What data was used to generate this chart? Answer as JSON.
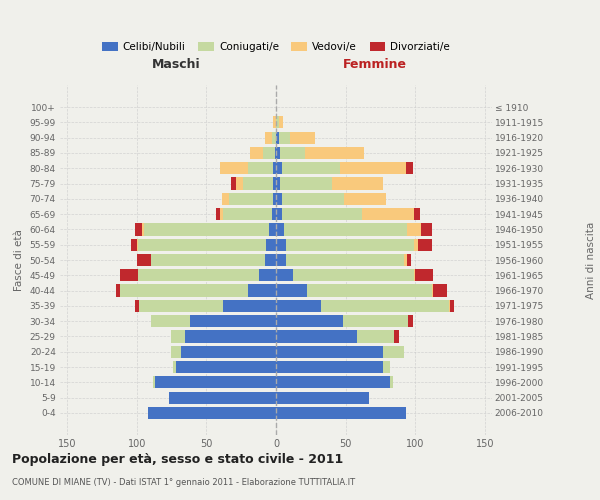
{
  "age_groups": [
    "100+",
    "95-99",
    "90-94",
    "85-89",
    "80-84",
    "75-79",
    "70-74",
    "65-69",
    "60-64",
    "55-59",
    "50-54",
    "45-49",
    "40-44",
    "35-39",
    "30-34",
    "25-29",
    "20-24",
    "15-19",
    "10-14",
    "5-9",
    "0-4"
  ],
  "birth_years": [
    "≤ 1910",
    "1911-1915",
    "1916-1920",
    "1921-1925",
    "1926-1930",
    "1931-1935",
    "1936-1940",
    "1941-1945",
    "1946-1950",
    "1951-1955",
    "1956-1960",
    "1961-1965",
    "1966-1970",
    "1971-1975",
    "1976-1980",
    "1981-1985",
    "1986-1990",
    "1991-1995",
    "1996-2000",
    "2001-2005",
    "2006-2010"
  ],
  "colors": {
    "celibi": "#4472C4",
    "coniugati": "#C5D9A0",
    "vedovi": "#F9C97C",
    "divorziati": "#C0282D"
  },
  "males_celibi": [
    0,
    0,
    0,
    1,
    2,
    2,
    2,
    3,
    5,
    7,
    8,
    12,
    20,
    38,
    62,
    65,
    68,
    72,
    87,
    77,
    92
  ],
  "males_coniugati": [
    0,
    0,
    3,
    8,
    18,
    22,
    32,
    35,
    90,
    92,
    82,
    87,
    92,
    60,
    28,
    10,
    7,
    2,
    1,
    0,
    0
  ],
  "males_vedovi": [
    0,
    2,
    5,
    10,
    20,
    5,
    5,
    2,
    1,
    1,
    0,
    0,
    0,
    0,
    0,
    0,
    0,
    0,
    0,
    0,
    0
  ],
  "males_divorziati": [
    0,
    0,
    0,
    0,
    0,
    3,
    0,
    3,
    5,
    4,
    10,
    13,
    3,
    3,
    0,
    0,
    0,
    0,
    0,
    0,
    0
  ],
  "females_nubili": [
    0,
    0,
    2,
    3,
    4,
    3,
    4,
    4,
    6,
    7,
    7,
    12,
    22,
    32,
    48,
    58,
    77,
    77,
    82,
    67,
    93
  ],
  "females_coniugate": [
    0,
    2,
    8,
    18,
    42,
    37,
    45,
    58,
    88,
    92,
    85,
    87,
    90,
    92,
    47,
    27,
    15,
    5,
    2,
    0,
    0
  ],
  "females_vedove": [
    0,
    3,
    18,
    42,
    47,
    37,
    30,
    37,
    10,
    3,
    2,
    1,
    1,
    1,
    0,
    0,
    0,
    0,
    0,
    0,
    0
  ],
  "females_divorziate": [
    0,
    0,
    0,
    0,
    5,
    0,
    0,
    4,
    8,
    10,
    3,
    13,
    10,
    3,
    3,
    3,
    0,
    0,
    0,
    0,
    0
  ],
  "xlim": 155,
  "title": "Popolazione per età, sesso e stato civile - 2011",
  "subtitle": "COMUNE DI MIANE (TV) - Dati ISTAT 1° gennaio 2011 - Elaborazione TUTTITALIA.IT",
  "bg_color": "#F0F0EB"
}
